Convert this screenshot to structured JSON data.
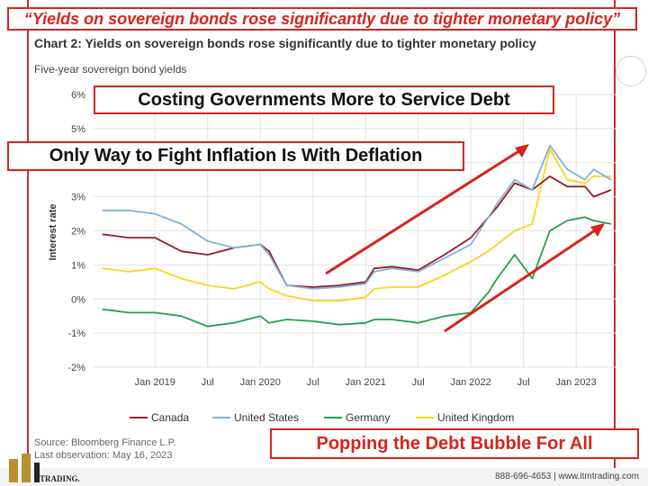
{
  "header": {
    "banner_quote": "“Yields on sovereign bonds rose significantly due to tighter monetary policy”",
    "chart_title": "Chart 2: Yields on sovereign bonds rose significantly due to tighter monetary policy",
    "chart_subtitle": "Five-year sovereign bond yields"
  },
  "callouts": {
    "box1": "Costing Governments More to Service Debt",
    "box2": "Only Way to Fight Inflation Is With Deflation",
    "box3": "Popping the Debt Bubble For All"
  },
  "footer": {
    "source": "Source: Bloomberg Finance L.P.",
    "observation": "Last observation: May 16, 2023",
    "contact": "888-696-4653  |  www.itmtrading.com",
    "logo_text": "TRADING."
  },
  "colors": {
    "canada": "#9b1b1f",
    "united_states": "#7db3dd",
    "germany": "#22a045",
    "united_kingdom": "#ffd21a",
    "accent_red": "#d6241d"
  },
  "chart_data": {
    "type": "line",
    "ylabel": "Interest rate",
    "ylim": [
      -2,
      6
    ],
    "yticks": [
      "6%",
      "5%",
      "4%",
      "3%",
      "2%",
      "1%",
      "0%",
      "-1%",
      "-2%"
    ],
    "xticks": [
      "Jan 2019",
      "Jul",
      "Jan 2020",
      "Jul",
      "Jan 2021",
      "Jul",
      "Jan 2022",
      "Jul",
      "Jan 2023"
    ],
    "grid": true,
    "legend_position": "bottom",
    "x": [
      "2018-07",
      "2018-10",
      "2019-01",
      "2019-04",
      "2019-07",
      "2019-10",
      "2020-01",
      "2020-02",
      "2020-04",
      "2020-07",
      "2020-10",
      "2021-01",
      "2021-02",
      "2021-04",
      "2021-07",
      "2021-10",
      "2022-01",
      "2022-03",
      "2022-04",
      "2022-06",
      "2022-08",
      "2022-10",
      "2022-12",
      "2023-02",
      "2023-03",
      "2023-05"
    ],
    "series": [
      {
        "name": "Canada",
        "values": [
          1.9,
          1.8,
          1.8,
          1.4,
          1.3,
          1.5,
          1.6,
          1.4,
          0.4,
          0.35,
          0.4,
          0.5,
          0.9,
          0.95,
          0.85,
          1.3,
          1.8,
          2.4,
          2.7,
          3.4,
          3.2,
          3.6,
          3.3,
          3.3,
          3.0,
          3.2
        ]
      },
      {
        "name": "United States",
        "values": [
          2.6,
          2.6,
          2.5,
          2.2,
          1.7,
          1.5,
          1.6,
          1.3,
          0.4,
          0.3,
          0.35,
          0.45,
          0.8,
          0.9,
          0.8,
          1.2,
          1.6,
          2.4,
          2.8,
          3.5,
          3.2,
          4.5,
          3.8,
          3.5,
          3.8,
          3.5
        ]
      },
      {
        "name": "Germany",
        "values": [
          -0.3,
          -0.4,
          -0.4,
          -0.5,
          -0.8,
          -0.7,
          -0.5,
          -0.7,
          -0.6,
          -0.65,
          -0.75,
          -0.7,
          -0.6,
          -0.6,
          -0.7,
          -0.5,
          -0.4,
          0.2,
          0.6,
          1.3,
          0.6,
          2.0,
          2.3,
          2.4,
          2.3,
          2.2
        ]
      },
      {
        "name": "United Kingdom",
        "values": [
          0.9,
          0.8,
          0.9,
          0.6,
          0.4,
          0.3,
          0.5,
          0.3,
          0.1,
          -0.05,
          -0.05,
          0.05,
          0.3,
          0.35,
          0.35,
          0.7,
          1.1,
          1.4,
          1.6,
          2.0,
          2.2,
          4.4,
          3.5,
          3.4,
          3.6,
          3.6
        ]
      }
    ]
  }
}
